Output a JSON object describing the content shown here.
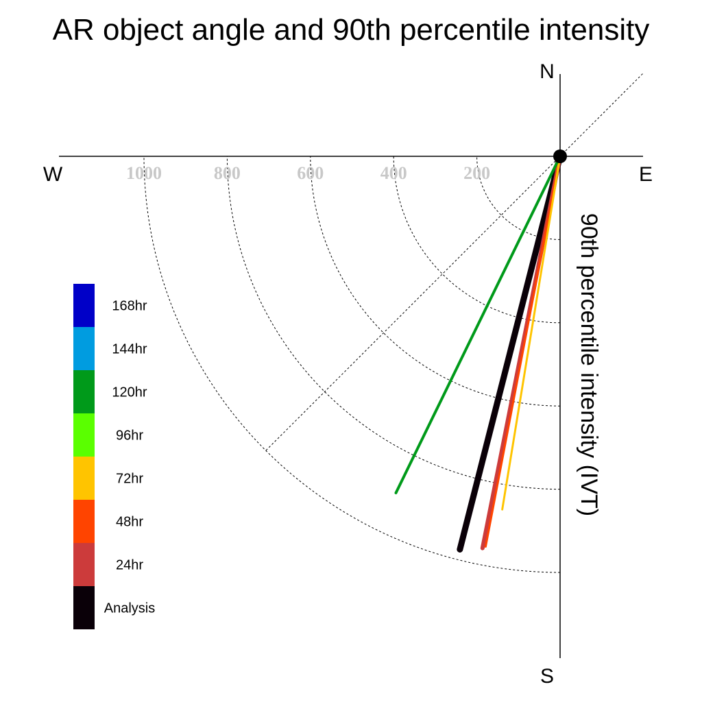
{
  "chart_data": {
    "type": "polar-vector",
    "title": "AR object angle and 90th percentile intensity",
    "ylabel": "90th percentile intensity (IVT)",
    "compass": {
      "north": "N",
      "south": "S",
      "east": "E",
      "west": "W"
    },
    "radial_ticks": [
      "1000",
      "800",
      "600",
      "400",
      "200"
    ],
    "radial_tick_values": [
      1000,
      800,
      600,
      400,
      200
    ],
    "rlim": [
      0,
      1000
    ],
    "angle_unit": "degrees clockwise from north",
    "series": [
      {
        "name": "Analysis",
        "color": "#0a0008",
        "angle": 194.3,
        "intensity": 975,
        "width": 9
      },
      {
        "name": "24hr",
        "color": "#cc3b3b",
        "angle": 191.2,
        "intensity": 960,
        "width": 6
      },
      {
        "name": "48hr",
        "color": "#ff4400",
        "angle": 190.8,
        "intensity": 955,
        "width": 3
      },
      {
        "name": "72hr",
        "color": "#ffc400",
        "angle": 189.3,
        "intensity": 860,
        "width": 3
      },
      {
        "name": "120hr",
        "color": "#009a1a",
        "angle": 206.0,
        "intensity": 900,
        "width": 4
      }
    ],
    "legend": [
      {
        "label": "168hr",
        "color": "#0000c8"
      },
      {
        "label": "144hr",
        "color": "#009ce0"
      },
      {
        "label": "120hr",
        "color": "#009a1a"
      },
      {
        "label": "96hr",
        "color": "#5aff00"
      },
      {
        "label": "72hr",
        "color": "#ffc400"
      },
      {
        "label": "48hr",
        "color": "#ff4400"
      },
      {
        "label": "24hr",
        "color": "#cc3b3b"
      },
      {
        "label": "Analysis",
        "color": "#0a0008"
      }
    ],
    "legend_position": "left",
    "grid": true
  }
}
